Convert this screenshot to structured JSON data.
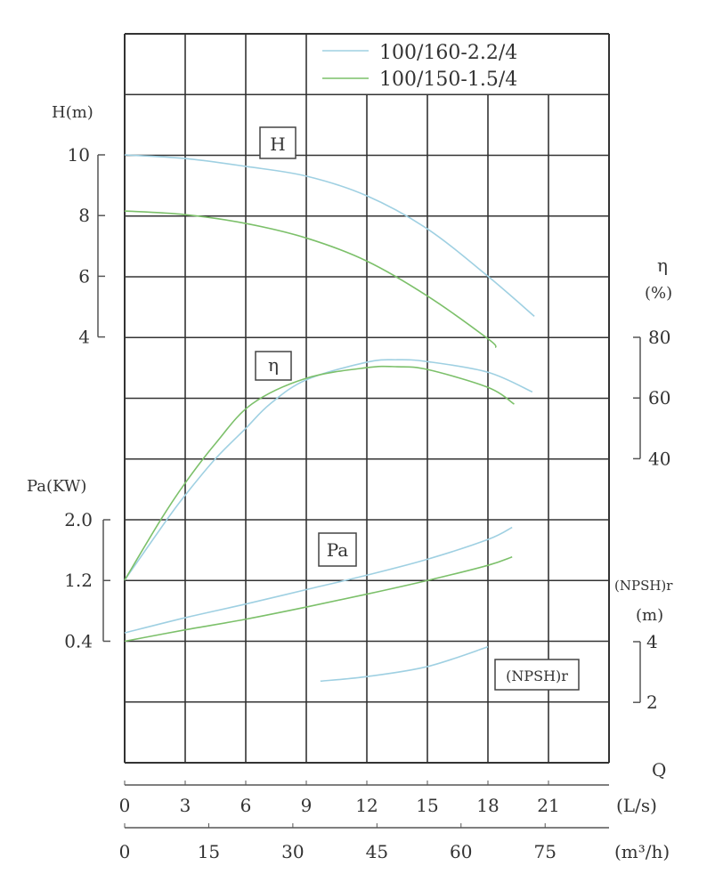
{
  "chart_data": {
    "type": "line",
    "legend": {
      "placement": "top-right",
      "entries": [
        {
          "name": "100/160-2.2/4",
          "color": "#9fd0e2"
        },
        {
          "name": "100/150-1.5/4",
          "color": "#7cc06a"
        }
      ]
    },
    "grid": true,
    "x_axis": {
      "label": "Q",
      "primary": {
        "unit": "(L/s)",
        "range": [
          0,
          24
        ],
        "ticks": [
          0,
          3,
          6,
          9,
          12,
          15,
          18,
          21
        ]
      },
      "secondary": {
        "unit": "(m³/h)",
        "ticks": [
          0,
          15,
          30,
          45,
          60,
          75
        ]
      }
    },
    "y_axes": {
      "H": {
        "label": "H(m)",
        "ticks": [
          10,
          8,
          6,
          4
        ],
        "range": [
          4,
          10
        ],
        "curve_label": "H"
      },
      "eta": {
        "label": "η",
        "unit": "(%)",
        "ticks": [
          80,
          60,
          40
        ],
        "range": [
          40,
          80
        ],
        "curve_label": "η"
      },
      "Pa": {
        "label": "Pa(KW)",
        "ticks": [
          "2.0",
          "1.2",
          "0.4"
        ],
        "range": [
          0.4,
          2.0
        ],
        "curve_label": "Pa"
      },
      "NPSH": {
        "label": "(NPSH)r",
        "unit": "(m)",
        "ticks": [
          4,
          2
        ],
        "range": [
          2,
          4
        ],
        "curve_label": "(NPSH)r"
      }
    },
    "series": [
      {
        "name": "100/160-2.2/4",
        "quantity": "H",
        "color": "#9fd0e2",
        "x": [
          0,
          3,
          6,
          9,
          12,
          15,
          18,
          20.3
        ],
        "y": [
          10.0,
          9.88,
          9.62,
          9.3,
          8.65,
          7.56,
          6.0,
          4.68
        ]
      },
      {
        "name": "100/150-1.5/4",
        "quantity": "H",
        "color": "#7cc06a",
        "x": [
          0,
          3,
          6,
          9,
          12,
          15,
          18,
          18.4
        ],
        "y": [
          8.15,
          8.03,
          7.74,
          7.26,
          6.5,
          5.35,
          3.94,
          3.65
        ]
      },
      {
        "name": "100/160-2.2/4",
        "quantity": "eta",
        "color": "#9fd0e2",
        "x": [
          0,
          2.1,
          3,
          4.5,
          6,
          7.2,
          9,
          12,
          13.5,
          15,
          18,
          20.2
        ],
        "y": [
          0,
          20,
          28,
          40,
          50,
          58,
          66,
          71.8,
          72.6,
          72,
          68.5,
          62
        ]
      },
      {
        "name": "100/150-1.5/4",
        "quantity": "eta",
        "color": "#7cc06a",
        "x": [
          0,
          1.8,
          3,
          4.5,
          6.3,
          9,
          12,
          13.5,
          15,
          18,
          19.3
        ],
        "y": [
          0,
          20,
          32,
          45,
          58,
          66.5,
          70,
          70.3,
          69.4,
          63.5,
          58
        ]
      },
      {
        "name": "100/160-2.2/4",
        "quantity": "Pa",
        "color": "#9fd0e2",
        "x": [
          0,
          3,
          6,
          9,
          12,
          15,
          18,
          19.2
        ],
        "y": [
          0.51,
          0.71,
          0.89,
          1.08,
          1.27,
          1.48,
          1.74,
          1.9
        ]
      },
      {
        "name": "100/150-1.5/4",
        "quantity": "Pa",
        "color": "#7cc06a",
        "x": [
          0,
          3,
          6,
          9,
          12,
          15,
          18,
          19.2
        ],
        "y": [
          0.4,
          0.55,
          0.69,
          0.85,
          1.02,
          1.2,
          1.4,
          1.51
        ]
      },
      {
        "name": "100/160-2.2/4",
        "quantity": "NPSH",
        "color": "#9fd0e2",
        "x": [
          9.7,
          12,
          15,
          18
        ],
        "y": [
          2.7,
          2.85,
          3.18,
          3.83
        ]
      }
    ]
  }
}
